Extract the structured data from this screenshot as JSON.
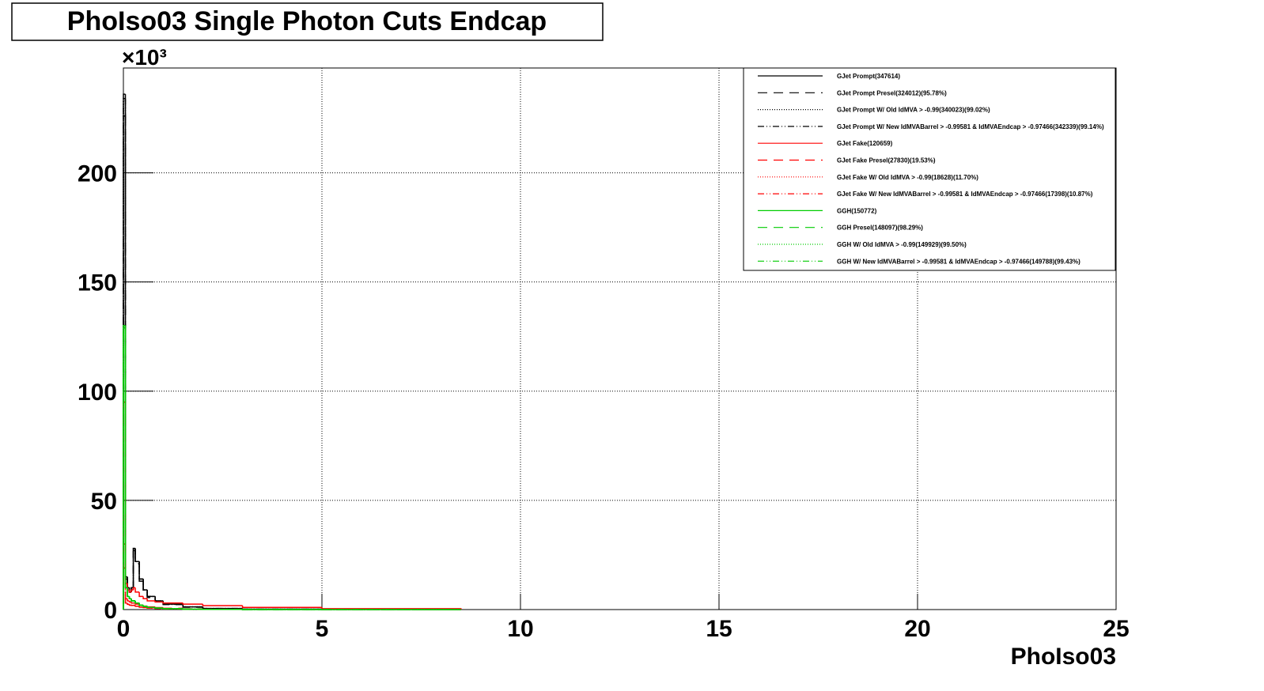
{
  "chart_data": {
    "type": "histogram",
    "title": "PhoIso03 Single Photon Cuts Endcap",
    "x_label": "PhoIso03",
    "y_scale_label": "×10³",
    "xlim": [
      0,
      25
    ],
    "xticks": [
      0,
      5,
      10,
      15,
      20,
      25
    ],
    "ylim": [
      0,
      248
    ],
    "yticks": [
      0,
      50,
      100,
      150,
      200
    ],
    "grid": true,
    "legend": "upper right",
    "bins": [
      0,
      0.05,
      0.1,
      0.15,
      0.2,
      0.25,
      0.3,
      0.4,
      0.5,
      0.6,
      0.8,
      1.0,
      1.5,
      2,
      3,
      5,
      8.5
    ],
    "series": [
      {
        "name": "GJet Prompt(347614)",
        "color": "#000000",
        "dash": "solid",
        "values": [
          236,
          15,
          10,
          8,
          10,
          28,
          22,
          14,
          9,
          6,
          4,
          2.5,
          1.2,
          0.5,
          0.2,
          0.05
        ]
      },
      {
        "name": "GJet Prompt Presel(324012)(95.78%)",
        "color": "#000000",
        "dash": "dashed",
        "values": [
          226,
          14,
          10,
          8,
          9,
          27,
          21,
          13,
          8.5,
          5.5,
          3.8,
          2.3,
          1.1,
          0.4,
          0.15,
          0.03
        ]
      },
      {
        "name": "GJet Prompt W/ Old IdMVA > -0.99(340023)(99.02%)",
        "color": "#000000",
        "dash": "dotted",
        "values": [
          233,
          15,
          10,
          8,
          10,
          28,
          22,
          14,
          9,
          6,
          4,
          2.4,
          1.2,
          0.5,
          0.2,
          0.05
        ]
      },
      {
        "name": "GJet Prompt W/ New IdMVABarrel > -0.99581 & IdMVAEndcap > -0.97466(342339)(99.14%)",
        "color": "#000000",
        "dash": "dashdotdot",
        "values": [
          234,
          15,
          10,
          8,
          10,
          28,
          22,
          14,
          9,
          6,
          4,
          2.4,
          1.2,
          0.5,
          0.2,
          0.05
        ]
      },
      {
        "name": "GJet Fake(120659)",
        "color": "#ff0000",
        "dash": "solid",
        "values": [
          95,
          12,
          9,
          8,
          9,
          10,
          8,
          6,
          5,
          4,
          3.5,
          3,
          2.5,
          1.8,
          1,
          0.4
        ]
      },
      {
        "name": "GJet Fake Presel(27830)(19.53%)",
        "color": "#ff0000",
        "dash": "dashed",
        "values": [
          30,
          5,
          4,
          3.5,
          3,
          3,
          2.5,
          2,
          1.6,
          1.2,
          0.9,
          0.6,
          0.3,
          0.15,
          0.05,
          0.01
        ]
      },
      {
        "name": "GJet Fake W/ Old IdMVA > -0.99(18628)(11.70%)",
        "color": "#ff0000",
        "dash": "dotted",
        "values": [
          20,
          3,
          2.5,
          2,
          2,
          2,
          1.6,
          1.2,
          1,
          0.7,
          0.5,
          0.3,
          0.15,
          0.08,
          0.03,
          0.01
        ]
      },
      {
        "name": "GJet Fake W/ New IdMVABarrel > -0.99581 & IdMVAEndcap > -0.97466(17398)(10.87%)",
        "color": "#ff0000",
        "dash": "dashdotdot",
        "values": [
          19,
          3,
          2.4,
          2,
          1.9,
          1.9,
          1.5,
          1.1,
          0.9,
          0.7,
          0.5,
          0.3,
          0.14,
          0.07,
          0.03,
          0.01
        ]
      },
      {
        "name": "GGH(150772)",
        "color": "#00cc00",
        "dash": "solid",
        "values": [
          130,
          10,
          6,
          5,
          4,
          4,
          3,
          2,
          1.5,
          1,
          0.7,
          0.4,
          0.2,
          0.08,
          0.02,
          0
        ]
      },
      {
        "name": "GGH Presel(148097)(98.29%)",
        "color": "#00cc00",
        "dash": "dashed",
        "values": [
          128,
          10,
          6,
          5,
          4,
          4,
          3,
          2,
          1.4,
          1,
          0.7,
          0.4,
          0.2,
          0.07,
          0.02,
          0
        ]
      },
      {
        "name": "GGH W/ Old IdMVA > -0.99(149929)(99.50%)",
        "color": "#00cc00",
        "dash": "dotted",
        "values": [
          129,
          10,
          6,
          5,
          4,
          4,
          3,
          2,
          1.5,
          1,
          0.7,
          0.4,
          0.2,
          0.08,
          0.02,
          0
        ]
      },
      {
        "name": "GGH W/ New IdMVABarrel > -0.99581 & IdMVAEndcap > -0.97466(149788)(99.43%)",
        "color": "#00cc00",
        "dash": "dashdotdot",
        "values": [
          129,
          10,
          6,
          5,
          4,
          4,
          3,
          2,
          1.5,
          1,
          0.7,
          0.4,
          0.2,
          0.08,
          0.02,
          0
        ]
      }
    ]
  }
}
